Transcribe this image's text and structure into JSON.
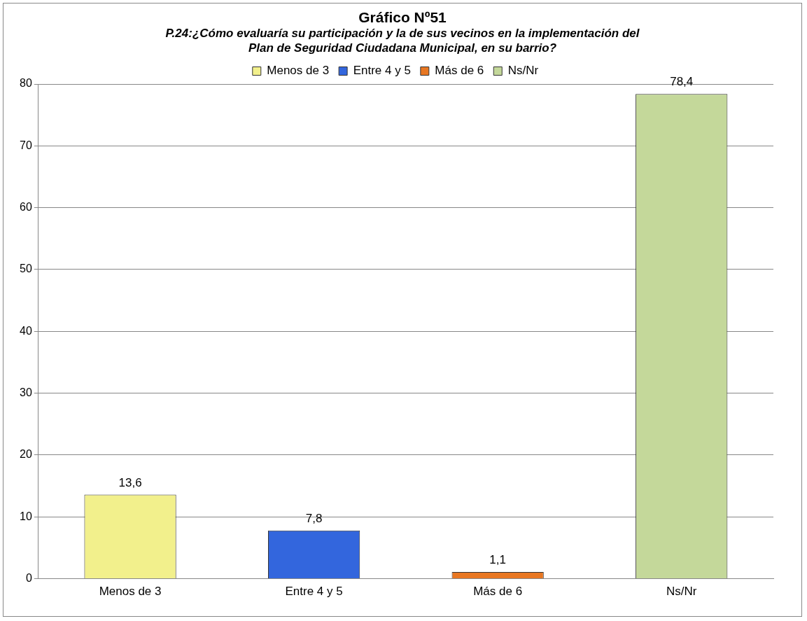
{
  "chart_data": {
    "type": "bar",
    "title": "Gráfico Nº51",
    "subtitle": "P.24:¿Cómo evaluaría su participación y la de sus vecinos en la implementación del Plan de Seguridad Ciudadana Municipal, en su barrio?",
    "categories": [
      "Menos de 3",
      "Entre 4 y 5",
      "Más de 6",
      "Ns/Nr"
    ],
    "series": [
      {
        "name": "Menos de 3",
        "color": "#f2f08c",
        "values": [
          13.6,
          null,
          null,
          null
        ],
        "value_labels": [
          "13,6",
          null,
          null,
          null
        ]
      },
      {
        "name": "Entre 4 y 5",
        "color": "#3366dd",
        "values": [
          null,
          7.8,
          null,
          null
        ],
        "value_labels": [
          null,
          "7,8",
          null,
          null
        ]
      },
      {
        "name": "Más de 6",
        "color": "#e87722",
        "values": [
          null,
          null,
          1.1,
          null
        ],
        "value_labels": [
          null,
          null,
          "1,1",
          null
        ]
      },
      {
        "name": "Ns/Nr",
        "color": "#c4d89a",
        "values": [
          null,
          null,
          null,
          78.4
        ],
        "value_labels": [
          null,
          null,
          null,
          "78,4"
        ]
      }
    ],
    "ylim": [
      0,
      80
    ],
    "yticks": [
      0,
      10,
      20,
      30,
      40,
      50,
      60,
      70,
      80
    ],
    "grid": "y",
    "legend": "top"
  }
}
